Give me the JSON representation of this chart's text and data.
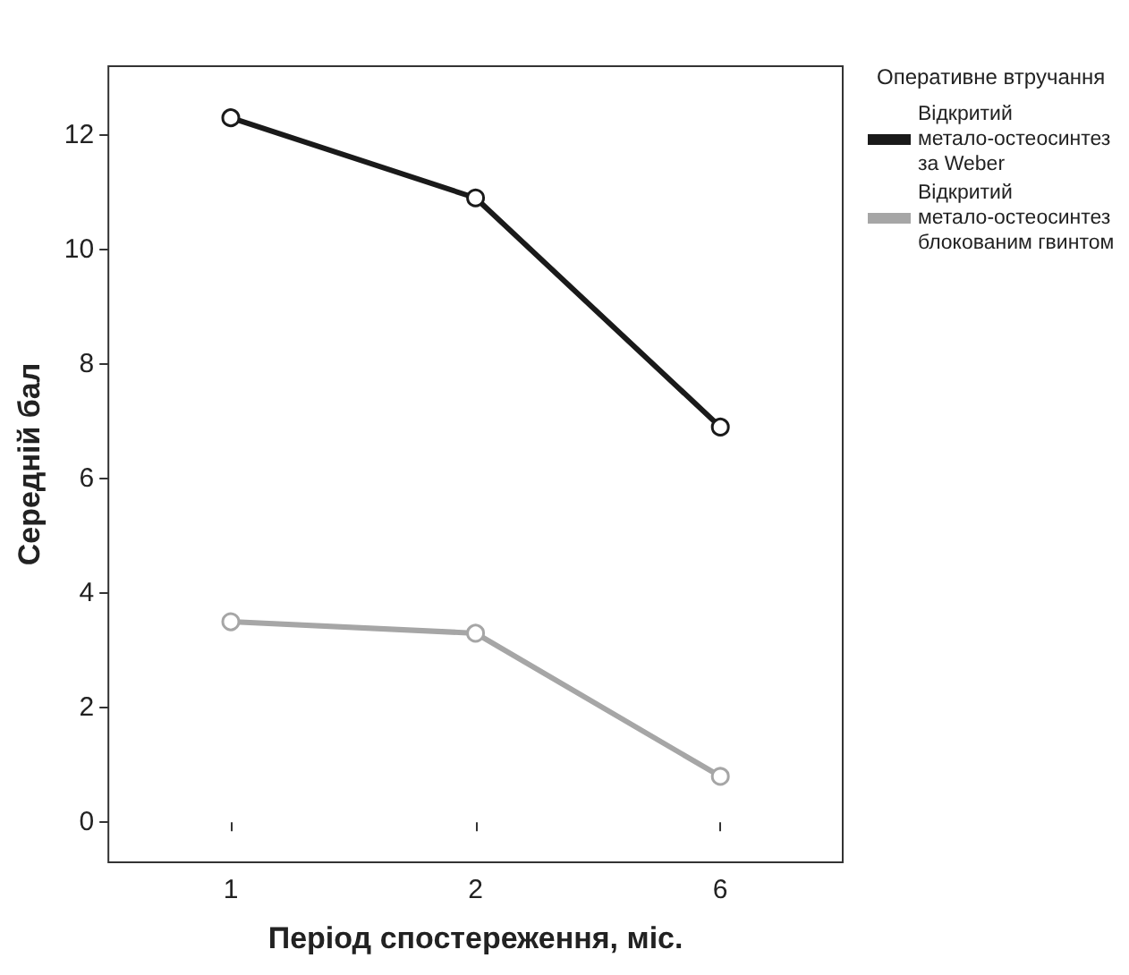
{
  "chart_data": {
    "type": "line",
    "xlabel": "Період спостереження, міс.",
    "ylabel": "Середній бал",
    "legend_title": "Оперативне втручання",
    "categories": [
      "1",
      "2",
      "6"
    ],
    "series": [
      {
        "name": "Відкритий метало-остеосинтез за Weber",
        "color": "#1a1a1a",
        "values": [
          12.3,
          10.9,
          6.9
        ]
      },
      {
        "name": "Відкритий метало-остеосинтез блокованим гвинтом",
        "color": "#a6a6a6",
        "values": [
          3.5,
          3.3,
          0.8
        ]
      }
    ],
    "ylim": [
      -0.7,
      13.2
    ],
    "yticks": [
      0,
      2,
      4,
      6,
      8,
      10,
      12
    ],
    "grid": false,
    "legend": "top right",
    "marker": "circle",
    "line_style": "solid"
  }
}
